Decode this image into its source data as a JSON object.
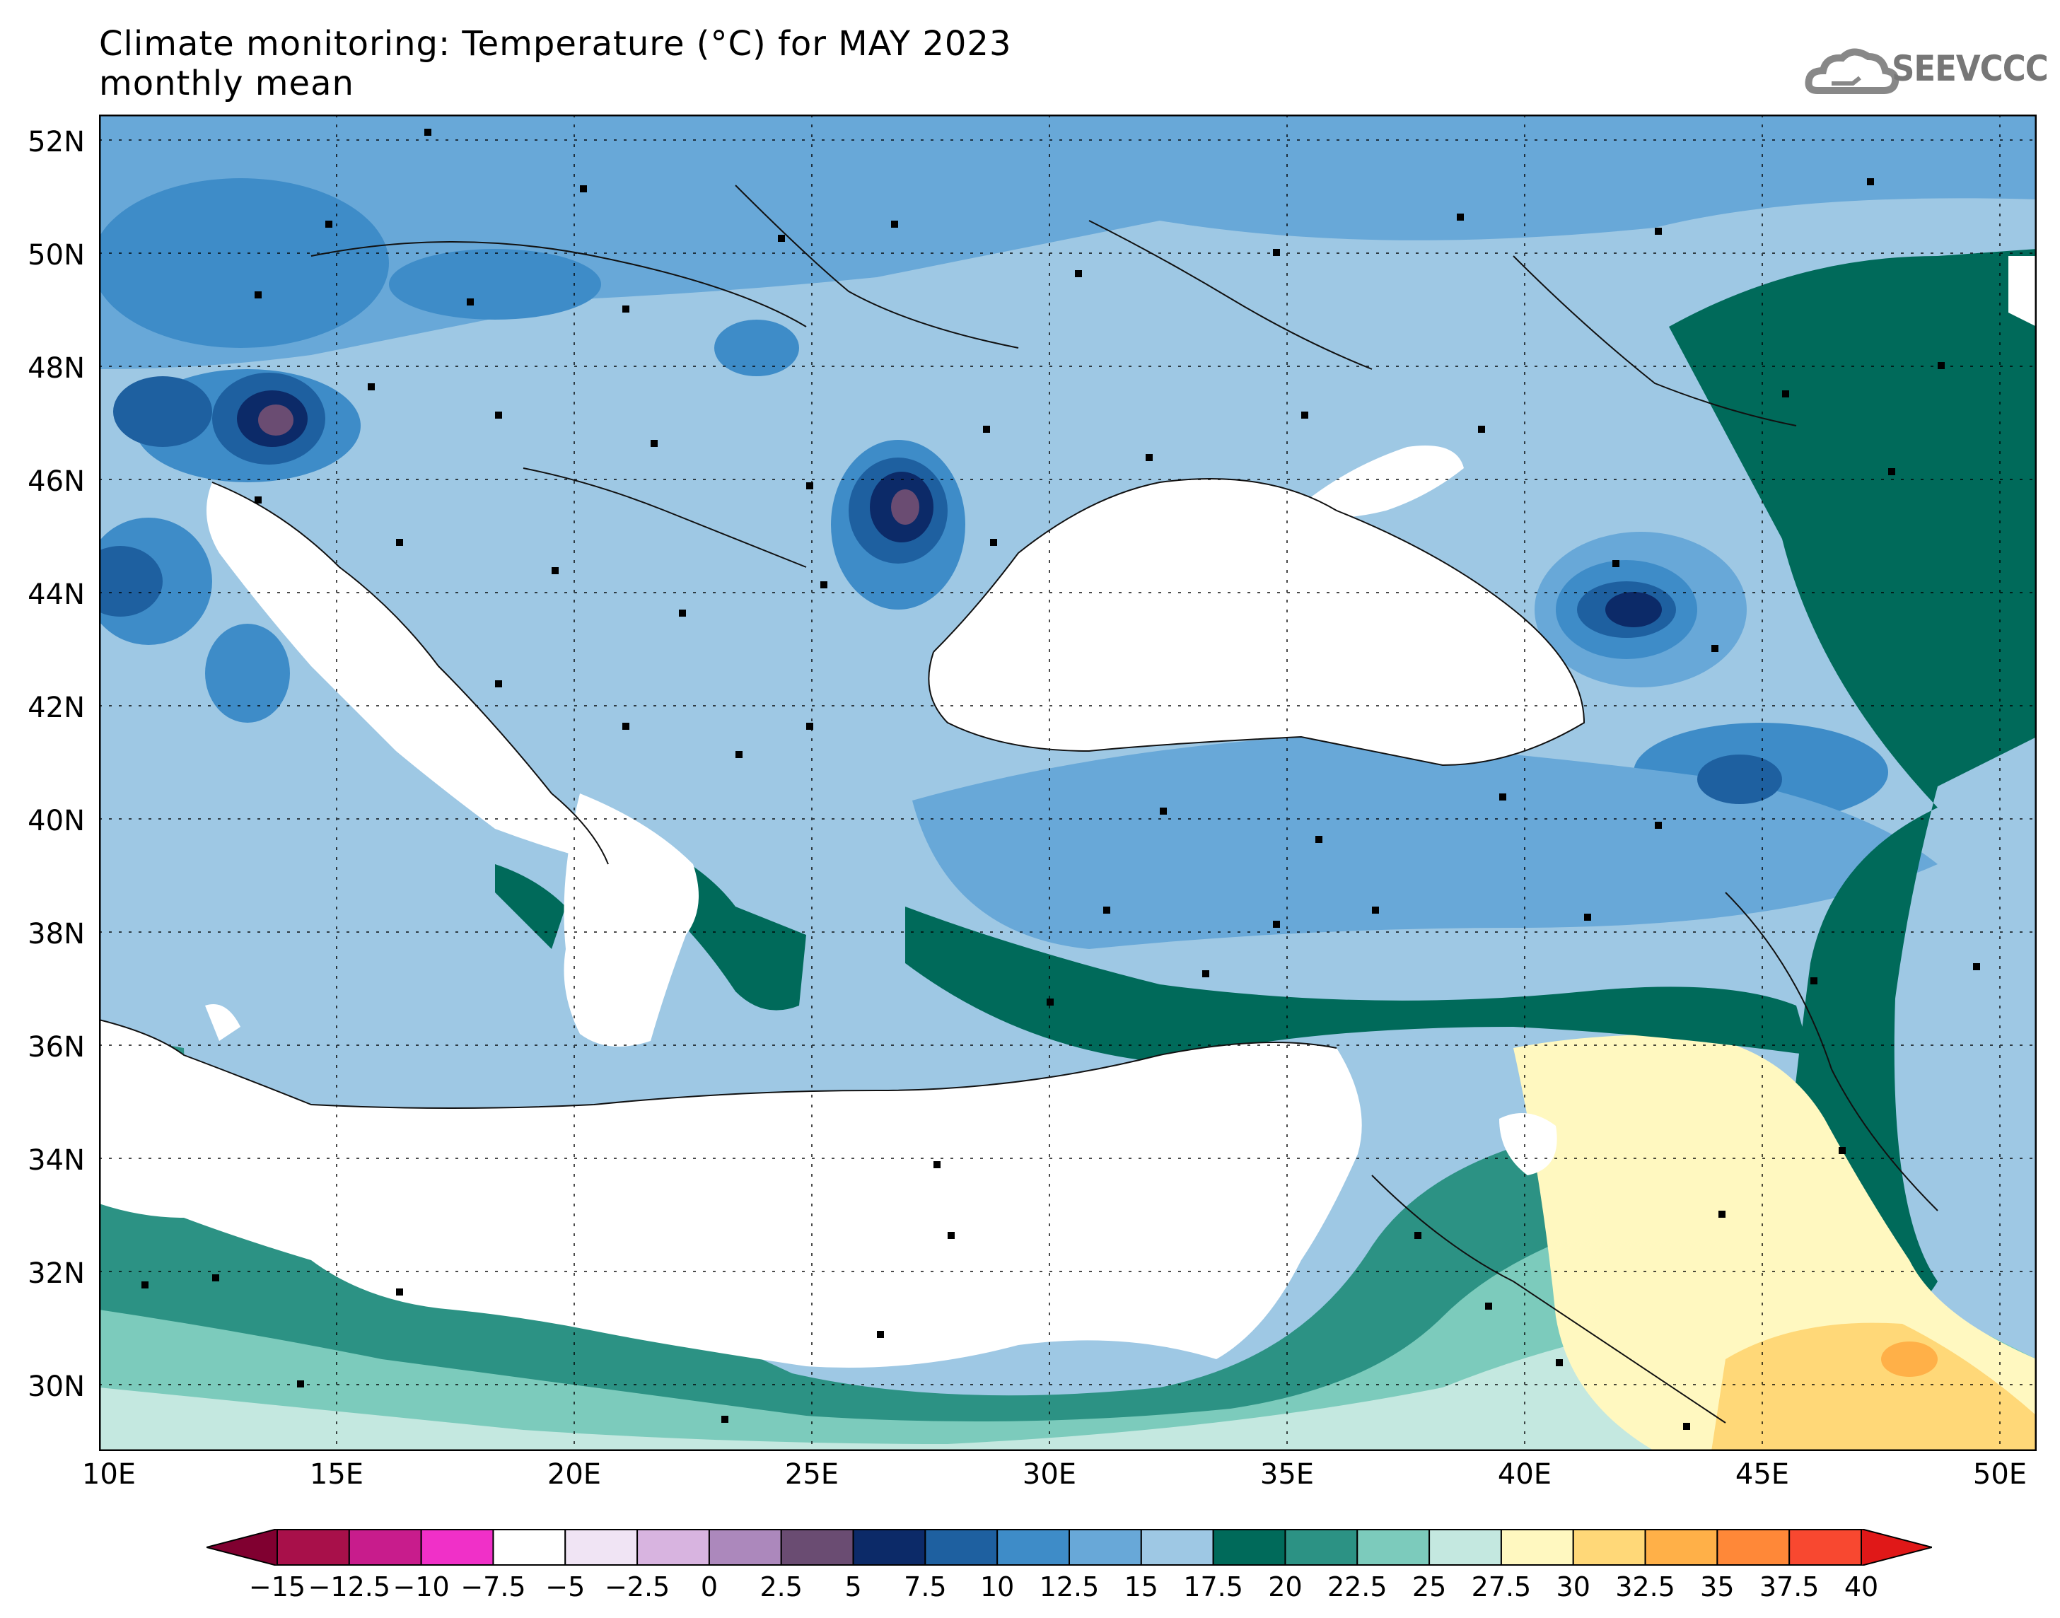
{
  "title": {
    "line1": "Climate monitoring: Temperature (°C) for MAY 2023",
    "line2": "monthly mean"
  },
  "logo": {
    "text": "SEEVCCC",
    "icon": "cloud-logo-icon"
  },
  "map": {
    "lon_range": [
      10,
      51
    ],
    "lat_range": [
      29,
      52.5
    ],
    "y_ticks": [
      "52N",
      "50N",
      "48N",
      "46N",
      "44N",
      "42N",
      "40N",
      "38N",
      "36N",
      "34N",
      "32N",
      "30N"
    ],
    "x_ticks": [
      "10E",
      "15E",
      "20E",
      "25E",
      "30E",
      "35E",
      "40E",
      "45E",
      "50E"
    ],
    "grid": "dotted"
  },
  "colorbar": {
    "labels": [
      "−15",
      "−12.5",
      "−10",
      "−7.5",
      "−5",
      "−2.5",
      "0",
      "2.5",
      "5",
      "7.5",
      "10",
      "12.5",
      "15",
      "17.5",
      "20",
      "22.5",
      "25",
      "27.5",
      "30",
      "32.5",
      "35",
      "37.5",
      "40"
    ],
    "colors": [
      "#a8104a",
      "#c81c8c",
      "#f030c8",
      "#ffffff",
      "#f0e4f4",
      "#d8b4e0",
      "#ac88bc",
      "#6a4c72",
      "#0c2a68",
      "#1e60a0",
      "#3e8cc8",
      "#68a8d8",
      "#9ec8e4",
      "#006a5a",
      "#2c9284",
      "#7ccbbc",
      "#c4e8e0",
      "#fff8c0",
      "#ffd878",
      "#ffb048",
      "#ff8838",
      "#f84830"
    ],
    "low_arrow": "#800030",
    "high_arrow": "#e01818"
  }
}
